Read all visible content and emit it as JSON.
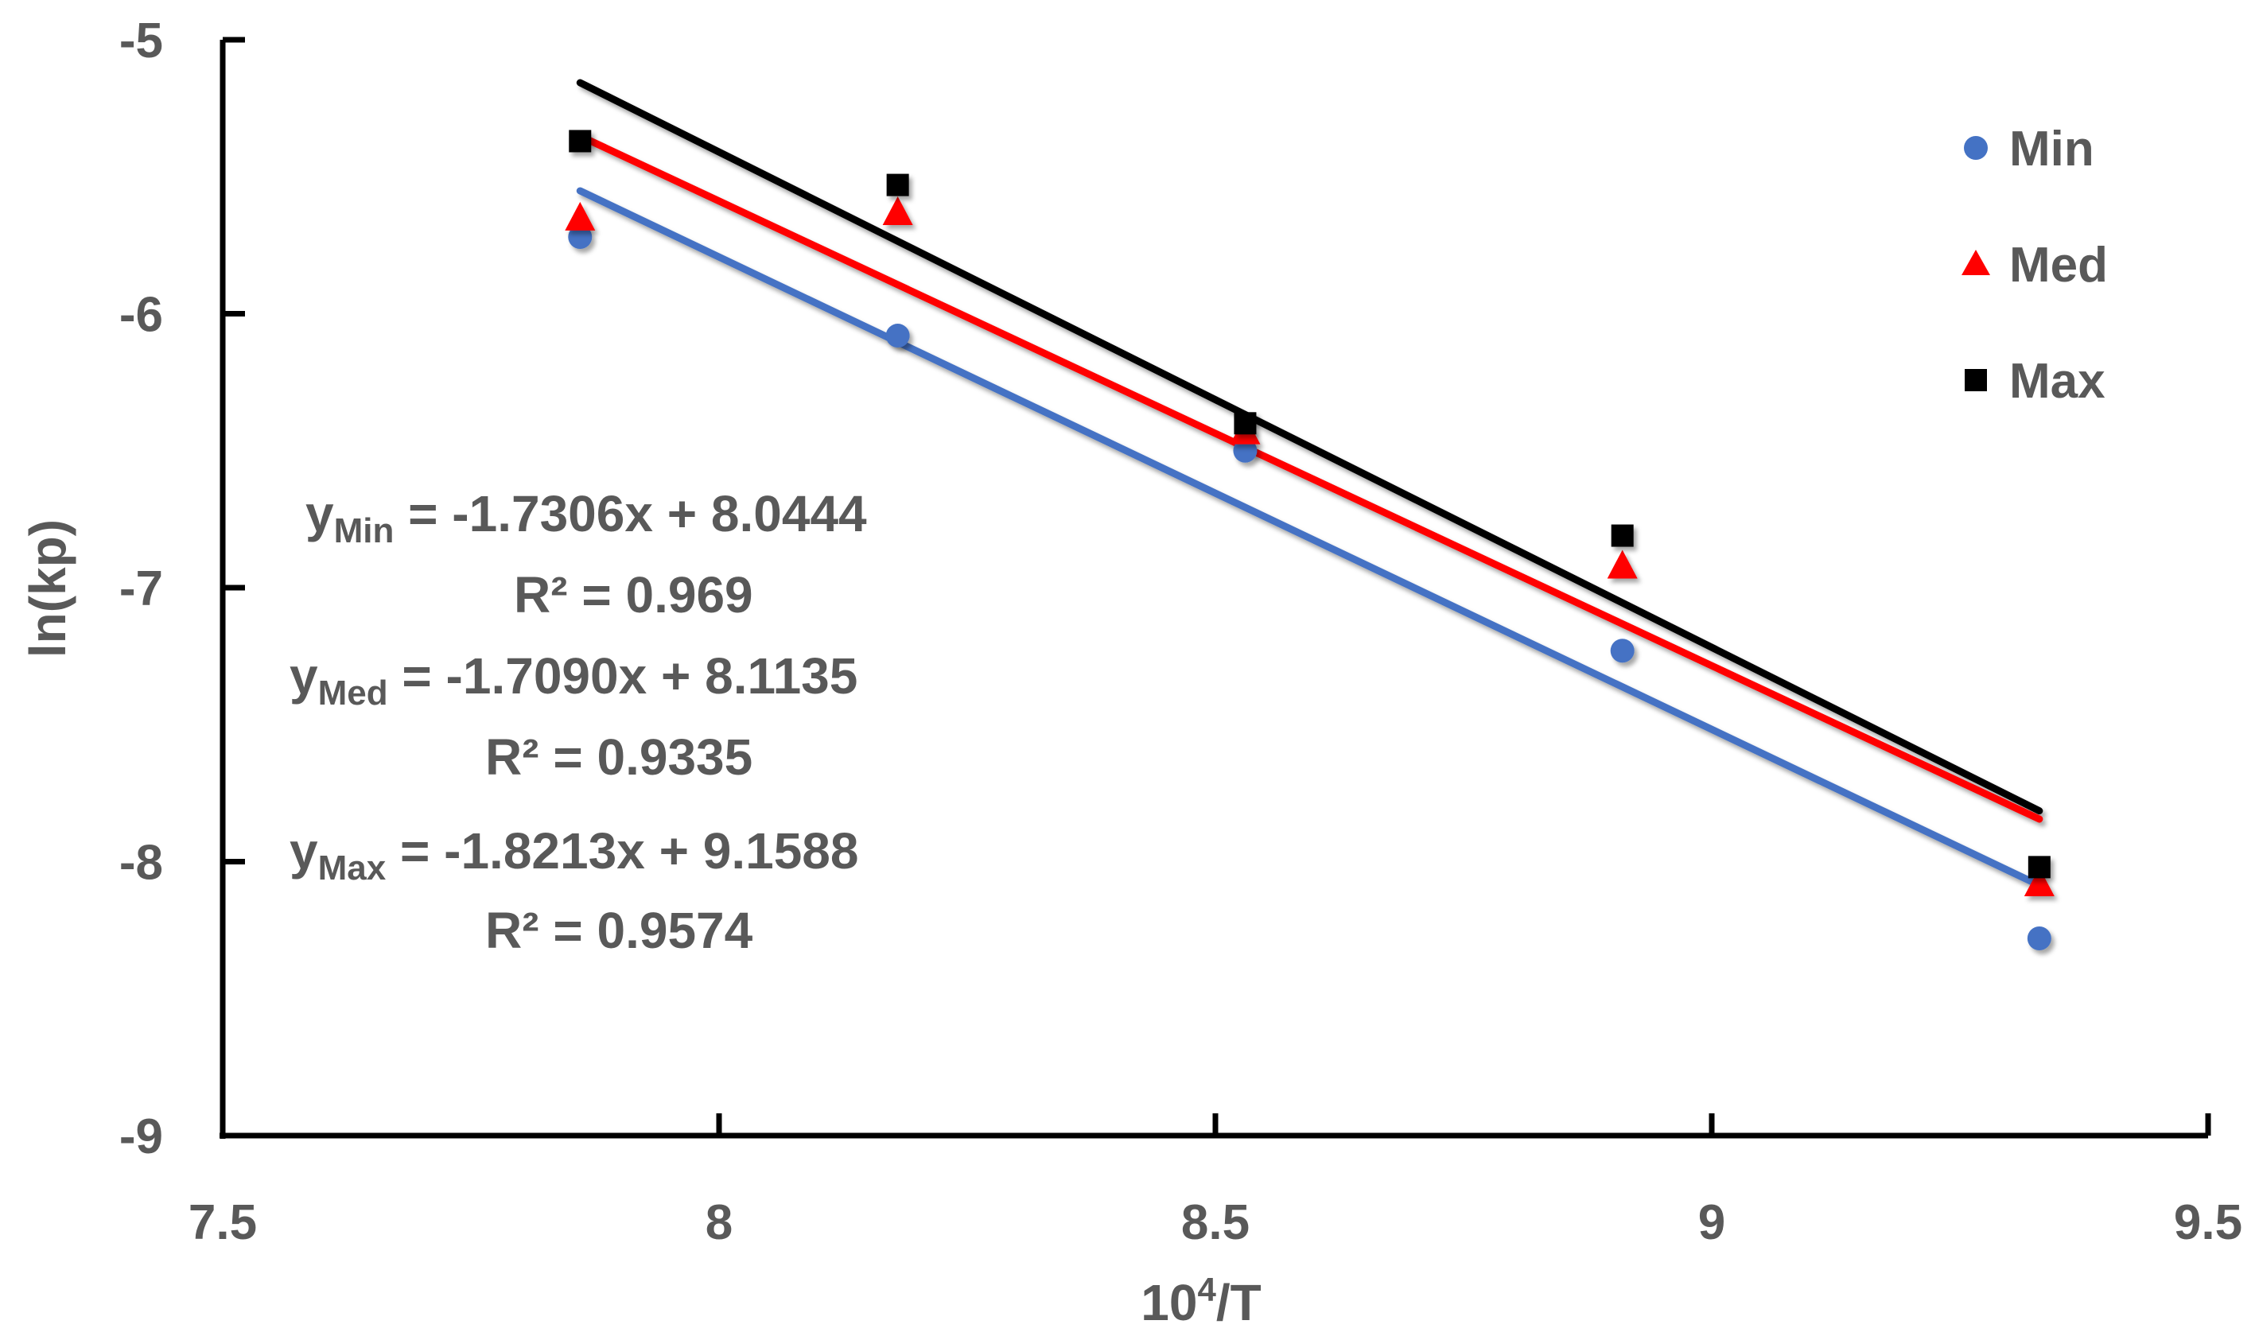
{
  "chart_data": {
    "type": "scatter",
    "title": "",
    "xlabel_base": "10",
    "xlabel_sup": "4",
    "xlabel_tail": "/T",
    "ylabel": "ln(kp)",
    "xlim": [
      7.5,
      9.5
    ],
    "ylim": [
      -9,
      -5
    ],
    "x_ticks": [
      7.5,
      8,
      8.5,
      9,
      9.5
    ],
    "x_tick_labels": [
      "7.5",
      "8",
      "8.5",
      "9",
      "9.5"
    ],
    "y_ticks": [
      -5,
      -6,
      -7,
      -8,
      -9
    ],
    "y_tick_labels": [
      "-5",
      "-6",
      "-7",
      "-8",
      "-9"
    ],
    "grid": false,
    "legend_position": "top-right",
    "x": [
      7.86,
      8.18,
      8.53,
      8.91,
      9.33
    ],
    "series": [
      {
        "name": "Min",
        "marker": "circle",
        "color": "#4472C4",
        "values": [
          -5.72,
          -6.08,
          -6.5,
          -7.23,
          -8.28
        ],
        "trend": {
          "slope": -1.7306,
          "intercept": 8.0444,
          "equation": "-1.7306x + 8.0444",
          "r2_label": "R² = 0.969"
        }
      },
      {
        "name": "Med",
        "marker": "triangle",
        "color": "#FF0000",
        "values": [
          -5.65,
          -5.63,
          -6.43,
          -6.92,
          -8.08
        ],
        "trend": {
          "slope": -1.709,
          "intercept": 8.1135,
          "equation": "-1.7090x + 8.1135",
          "r2_label": "R² = 0.9335"
        }
      },
      {
        "name": "Max",
        "marker": "square",
        "color": "#000000",
        "values": [
          -5.37,
          -5.53,
          -6.4,
          -6.81,
          -8.02
        ],
        "trend": {
          "slope": -1.8213,
          "intercept": 9.1588,
          "equation": "-1.8213x + 9.1588",
          "r2_label": "R² = 0.9574"
        }
      }
    ],
    "annotation_prefix": "y",
    "annotation_eq_sep": " = "
  }
}
